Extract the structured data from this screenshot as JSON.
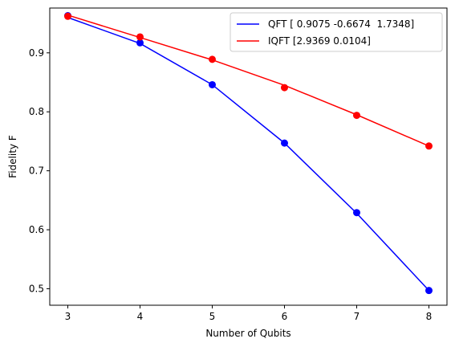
{
  "chart_data": {
    "type": "line",
    "xlabel": "Number of Qubits",
    "ylabel": "Fidelity F",
    "x": [
      3,
      4,
      5,
      6,
      7,
      8
    ],
    "xlim": [
      2.75,
      8.25
    ],
    "ylim": [
      0.472,
      0.976
    ],
    "xticks": [
      3,
      4,
      5,
      6,
      7,
      8
    ],
    "yticks": [
      0.5,
      0.6,
      0.7,
      0.8,
      0.9
    ],
    "xtick_labels": [
      "3",
      "4",
      "5",
      "6",
      "7",
      "8"
    ],
    "ytick_labels": [
      "0.5",
      "0.6",
      "0.7",
      "0.8",
      "0.9"
    ],
    "grid": false,
    "legend_position": "top-right",
    "series": [
      {
        "name": "QFT [ 0.9075 -0.6674  1.7348]",
        "color": "#0000ff",
        "points": [
          0.963,
          0.917,
          0.846,
          0.747,
          0.629,
          0.497
        ],
        "fit": [
          0.96,
          0.916,
          0.846,
          0.747,
          0.628,
          0.497
        ]
      },
      {
        "name": "IQFT [2.9369 0.0104]",
        "color": "#ff0000",
        "points": [
          0.962,
          0.927,
          0.889,
          0.841,
          0.794,
          0.742
        ],
        "fit": [
          0.964,
          0.926,
          0.888,
          0.845,
          0.795,
          0.742
        ]
      }
    ]
  }
}
